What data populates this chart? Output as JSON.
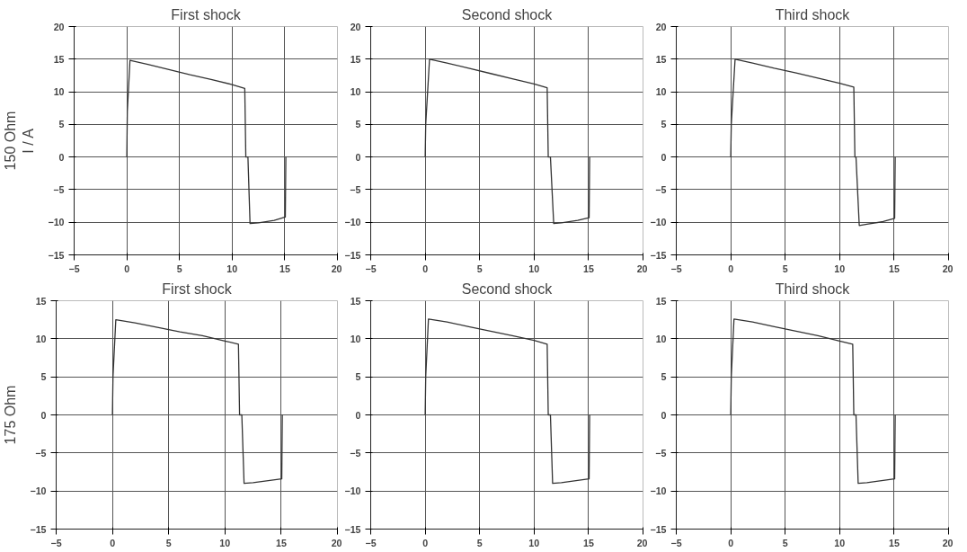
{
  "chart_data": [
    {
      "type": "line",
      "title": "First shock",
      "ylabel": "150 Ohm",
      "annotations": [
        "I / A"
      ],
      "x": [
        0,
        0.05,
        0.3,
        2,
        4,
        6,
        8,
        10,
        11.2,
        11.3,
        11.5,
        11.7,
        12.5,
        14,
        15.05,
        15.1
      ],
      "series": [
        {
          "color": "#333333",
          "values": [
            0,
            7,
            14.8,
            14.2,
            13.4,
            12.6,
            11.9,
            11.1,
            10.5,
            0,
            0,
            -10.2,
            -10.1,
            -9.7,
            -9.2,
            0
          ]
        }
      ],
      "xlim": [
        -5,
        20
      ],
      "ylim": [
        -15,
        20
      ],
      "xticks": [
        -5,
        0,
        5,
        10,
        15,
        20
      ],
      "yticks": [
        -15,
        -10,
        -5,
        0,
        5,
        10,
        15,
        20
      ],
      "grid": true
    },
    {
      "type": "line",
      "title": "Second shock",
      "x": [
        0,
        0.05,
        0.4,
        2,
        4,
        6,
        8,
        10,
        11.2,
        11.3,
        11.5,
        11.8,
        12.5,
        14,
        15.05,
        15.1
      ],
      "series": [
        {
          "color": "#333333",
          "values": [
            0,
            5,
            15,
            14.4,
            13.6,
            12.8,
            12,
            11.2,
            10.6,
            0,
            0,
            -10.2,
            -10.1,
            -9.7,
            -9.3,
            0
          ]
        }
      ],
      "xlim": [
        -5,
        20
      ],
      "ylim": [
        -15,
        20
      ],
      "xticks": [
        -5,
        0,
        5,
        10,
        15,
        20
      ],
      "yticks": [
        -15,
        -10,
        -5,
        0,
        5,
        10,
        15,
        20
      ],
      "grid": true
    },
    {
      "type": "line",
      "title": "Third shock",
      "x": [
        0,
        0.05,
        0.4,
        2,
        4,
        6,
        8,
        10,
        11.3,
        11.4,
        11.5,
        11.8,
        12.5,
        14,
        15.05,
        15.1
      ],
      "series": [
        {
          "color": "#333333",
          "values": [
            0,
            5,
            15,
            14.4,
            13.6,
            12.9,
            12.1,
            11.3,
            10.7,
            0,
            0,
            -10.5,
            -10.3,
            -9.9,
            -9.4,
            0
          ]
        }
      ],
      "xlim": [
        -5,
        20
      ],
      "ylim": [
        -15,
        20
      ],
      "xticks": [
        -5,
        0,
        5,
        10,
        15,
        20
      ],
      "yticks": [
        -15,
        -10,
        -5,
        0,
        5,
        10,
        15,
        20
      ],
      "grid": true
    },
    {
      "type": "line",
      "title": "First shock",
      "ylabel": "175 Ohm",
      "x": [
        0,
        0.05,
        0.3,
        2,
        4,
        6,
        8,
        10,
        11.2,
        11.3,
        11.5,
        11.7,
        12.5,
        14,
        15.05,
        15.1
      ],
      "series": [
        {
          "color": "#333333",
          "values": [
            0,
            5,
            12.5,
            12.1,
            11.5,
            10.9,
            10.4,
            9.7,
            9.3,
            0,
            0,
            -9,
            -8.9,
            -8.6,
            -8.4,
            0
          ]
        }
      ],
      "xlim": [
        -5,
        20
      ],
      "ylim": [
        -15,
        15
      ],
      "xticks": [
        -5,
        0,
        5,
        10,
        15,
        20
      ],
      "yticks": [
        -15,
        -10,
        -5,
        0,
        5,
        10,
        15
      ],
      "grid": true
    },
    {
      "type": "line",
      "title": "Second shock",
      "x": [
        0,
        0.05,
        0.3,
        2,
        4,
        6,
        8,
        10,
        11.2,
        11.3,
        11.5,
        11.7,
        12.5,
        14,
        15.05,
        15.1
      ],
      "series": [
        {
          "color": "#333333",
          "values": [
            0,
            5,
            12.6,
            12.2,
            11.6,
            11,
            10.4,
            9.8,
            9.3,
            0,
            0,
            -9,
            -8.9,
            -8.6,
            -8.4,
            0
          ]
        }
      ],
      "xlim": [
        -5,
        20
      ],
      "ylim": [
        -15,
        15
      ],
      "xticks": [
        -5,
        0,
        5,
        10,
        15,
        20
      ],
      "yticks": [
        -15,
        -10,
        -5,
        0,
        5,
        10,
        15
      ],
      "grid": true
    },
    {
      "type": "line",
      "title": "Third shock",
      "x": [
        0,
        0.05,
        0.3,
        2,
        4,
        6,
        8,
        10,
        11.2,
        11.3,
        11.5,
        11.7,
        12.5,
        14,
        15.05,
        15.1
      ],
      "series": [
        {
          "color": "#333333",
          "values": [
            0,
            5,
            12.6,
            12.2,
            11.6,
            11,
            10.4,
            9.7,
            9.3,
            0,
            0,
            -9,
            -8.9,
            -8.6,
            -8.4,
            0
          ]
        }
      ],
      "xlim": [
        -5,
        20
      ],
      "ylim": [
        -15,
        15
      ],
      "xticks": [
        -5,
        0,
        5,
        10,
        15,
        20
      ],
      "yticks": [
        -15,
        -10,
        -5,
        0,
        5,
        10,
        15
      ],
      "grid": true
    }
  ]
}
